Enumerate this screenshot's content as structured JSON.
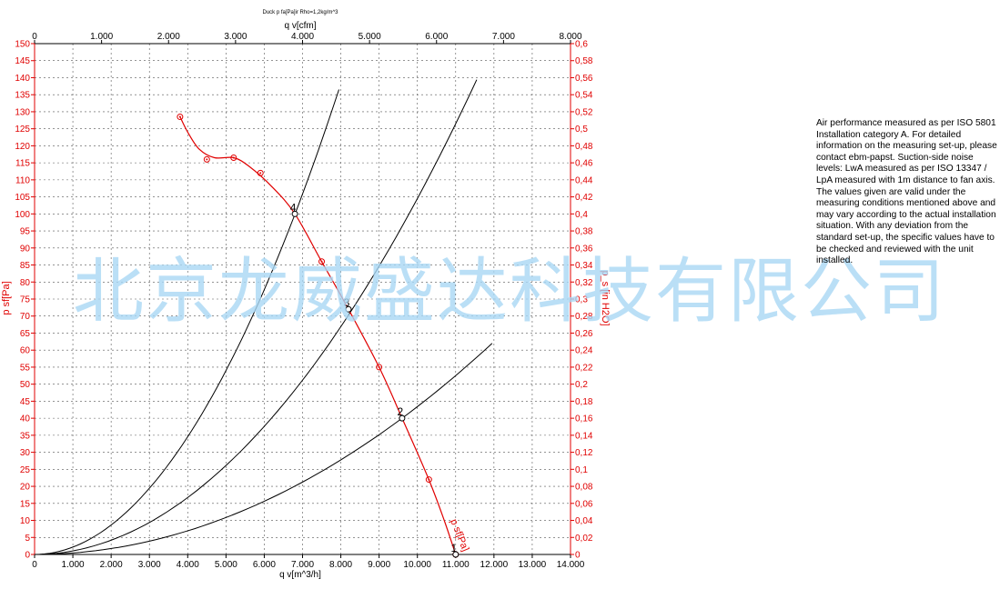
{
  "chart_data": {
    "type": "line",
    "title": "Duck p fa[Pa]ir Rho=1,2kg/m^3",
    "xlabel": "q v[m^3/h]",
    "x2label": "q v[cfm]",
    "ylabel": "p sf[Pa]",
    "y2label": "p_s [in H2O]",
    "xlim": [
      0,
      14000
    ],
    "x2lim": [
      0,
      8000
    ],
    "ylim": [
      0,
      150
    ],
    "y2lim": [
      0,
      0.6
    ],
    "x_ticks": [
      "0",
      "1.000",
      "2.000",
      "3.000",
      "4.000",
      "5.000",
      "6.000",
      "7.000",
      "8.000",
      "9.000",
      "10.000",
      "11.000",
      "12.000",
      "13.000",
      "14.000"
    ],
    "x2_ticks": [
      "0",
      "1.000",
      "2.000",
      "3.000",
      "4.000",
      "5.000",
      "6.000",
      "7.000",
      "8.000"
    ],
    "y_ticks": [
      "0",
      "5",
      "10",
      "15",
      "20",
      "25",
      "30",
      "35",
      "40",
      "45",
      "50",
      "55",
      "60",
      "65",
      "70",
      "75",
      "80",
      "85",
      "90",
      "95",
      "100",
      "105",
      "110",
      "115",
      "120",
      "125",
      "130",
      "135",
      "140",
      "145",
      "150"
    ],
    "y2_ticks": [
      "0",
      "0,02",
      "0,04",
      "0,06",
      "0,08",
      "0,1",
      "0,12",
      "0,14",
      "0,16",
      "0,18",
      "0,2",
      "0,22",
      "0,24",
      "0,26",
      "0,28",
      "0,3",
      "0,32",
      "0,34",
      "0,36",
      "0,38",
      "0,4",
      "0,42",
      "0,44",
      "0,46",
      "0,48",
      "0,5",
      "0,52",
      "0,54",
      "0,56",
      "0,58",
      "0,6"
    ],
    "grid": true,
    "series": [
      {
        "name": "p sf[Pa]",
        "color": "#e00000",
        "markers": [
          {
            "x": 3800,
            "y": 128.5
          },
          {
            "x": 4500,
            "y": 116
          },
          {
            "x": 5200,
            "y": 116.5
          },
          {
            "x": 5900,
            "y": 112
          },
          {
            "x": 7500,
            "y": 86
          },
          {
            "x": 9000,
            "y": 55
          },
          {
            "x": 10300,
            "y": 22
          },
          {
            "x": 11000,
            "y": 0
          }
        ],
        "curve": [
          {
            "x": 3800,
            "y": 128.5
          },
          {
            "x": 4000,
            "y": 124
          },
          {
            "x": 4300,
            "y": 119
          },
          {
            "x": 4700,
            "y": 116.5
          },
          {
            "x": 5200,
            "y": 116.5
          },
          {
            "x": 5600,
            "y": 114
          },
          {
            "x": 6200,
            "y": 108
          },
          {
            "x": 6800,
            "y": 100
          },
          {
            "x": 7500,
            "y": 86
          },
          {
            "x": 8200,
            "y": 72
          },
          {
            "x": 9000,
            "y": 55
          },
          {
            "x": 9600,
            "y": 40
          },
          {
            "x": 10300,
            "y": 22
          },
          {
            "x": 10700,
            "y": 10
          },
          {
            "x": 11000,
            "y": 0
          }
        ]
      }
    ],
    "system_curves": [
      {
        "k": 2.16e-06,
        "x_max": 7950
      },
      {
        "k": 1.045e-06,
        "x_max": 11550
      },
      {
        "k": 4.34e-07,
        "x_max": 11950
      }
    ],
    "operating_points": [
      {
        "label": "1",
        "x": 11000,
        "y": 0
      },
      {
        "label": "2",
        "x": 9600,
        "y": 40
      },
      {
        "label": "3",
        "x": 8200,
        "y": 72
      },
      {
        "label": "4",
        "x": 6800,
        "y": 100
      }
    ],
    "curve_label": "p sf[Pa]"
  },
  "note": "Air performance measured as per ISO 5801 Installation category A. For detailed information on the measuring set-up, please contact ebm-papst. Suction-side noise levels: LwA measured as per ISO 13347 / LpA measured with 1m distance to fan axis. The values given are valid under the measuring conditions mentioned above and may vary according to the actual installation situation. With any deviation from the standard set-up, the specific values have to be checked and reviewed with the unit installed.",
  "watermark": "北京龙威盛达科技有限公司"
}
